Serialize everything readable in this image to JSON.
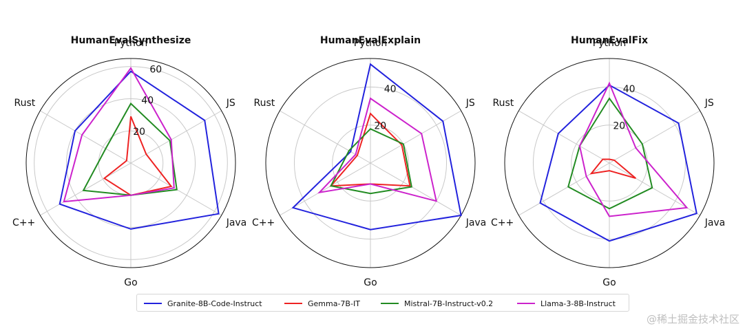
{
  "chart_data": [
    {
      "type": "radar",
      "title": "HumanEvalSynthesize",
      "axes": [
        "Python",
        "JS",
        "Java",
        "Go",
        "C++",
        "Rust"
      ],
      "rmax": 65,
      "rticks": [
        20,
        40,
        60
      ],
      "series": [
        {
          "name": "Granite-8B-Code-Instruct",
          "values": [
            57,
            53,
            63,
            41,
            51,
            40
          ]
        },
        {
          "name": "Gemma-7B-IT",
          "values": [
            29,
            11,
            29,
            20,
            19,
            3
          ]
        },
        {
          "name": "Mistral-7B-Instruct-v0.2",
          "values": [
            37,
            28,
            33,
            20,
            34,
            18
          ]
        },
        {
          "name": "Llama-3-8B-Instruct",
          "values": [
            59,
            29,
            31,
            20,
            48,
            35
          ]
        }
      ]
    },
    {
      "type": "radar",
      "title": "HumanEvalExplain",
      "axes": [
        "Python",
        "JS",
        "Java",
        "Go",
        "C++",
        "Rust"
      ],
      "rmax": 55,
      "rticks": [
        20,
        40
      ],
      "series": [
        {
          "name": "Granite-8B-Code-Instruct",
          "values": [
            52,
            44,
            55,
            35,
            47,
            12
          ]
        },
        {
          "name": "Gemma-7B-IT",
          "values": [
            26,
            19,
            24,
            11,
            24,
            8
          ]
        },
        {
          "name": "Mistral-7B-Instruct-v0.2",
          "values": [
            18,
            20,
            25,
            16,
            24,
            13
          ]
        },
        {
          "name": "Llama-3-8B-Instruct",
          "values": [
            34,
            31,
            40,
            11,
            31,
            9
          ]
        }
      ]
    },
    {
      "type": "radar",
      "title": "HumanEvalFix",
      "axes": [
        "Python",
        "JS",
        "Java",
        "Go",
        "C++",
        "Rust"
      ],
      "rmax": 55,
      "rticks": [
        20,
        40
      ],
      "series": [
        {
          "name": "Granite-8B-Code-Instruct",
          "values": [
            41,
            42,
            53,
            41,
            42,
            31
          ]
        },
        {
          "name": "Gemma-7B-IT",
          "values": [
            2,
            3,
            16,
            4,
            11,
            4
          ]
        },
        {
          "name": "Mistral-7B-Instruct-v0.2",
          "values": [
            34,
            20,
            26,
            24,
            25,
            18
          ]
        },
        {
          "name": "Llama-3-8B-Instruct",
          "values": [
            42,
            16,
            47,
            28,
            14,
            18
          ]
        }
      ]
    }
  ],
  "colors": {
    "Granite-8B-Code-Instruct": "#2222dd",
    "Gemma-7B-IT": "#ee2222",
    "Mistral-7B-Instruct-v0.2": "#228b22",
    "Llama-3-8B-Instruct": "#cc22cc",
    "grid": "#c8c8c8",
    "spine": "#111111"
  },
  "legend": {
    "items": [
      "Granite-8B-Code-Instruct",
      "Gemma-7B-IT",
      "Mistral-7B-Instruct-v0.2",
      "Llama-3-8B-Instruct"
    ]
  },
  "watermark": "@稀土掘金技术社区"
}
